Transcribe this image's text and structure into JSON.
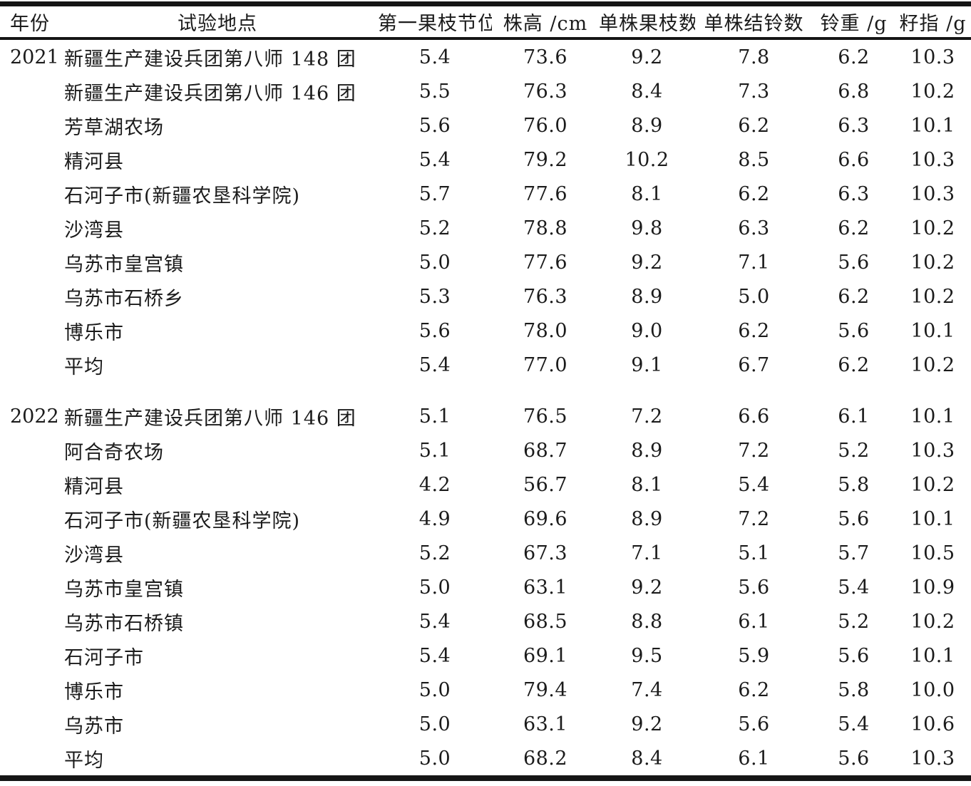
{
  "colors": {
    "background": "#ffffff",
    "text": "#1b1b1b",
    "rule": "#151515"
  },
  "table": {
    "columns": [
      "年份",
      "试验地点",
      "第一果枝节位",
      "株高 /cm",
      "单株果枝数",
      "单株结铃数",
      "铃重 /g",
      "籽指 /g"
    ],
    "sections": [
      {
        "year": "2021",
        "rows": [
          {
            "location": "新疆生产建设兵团第八师 148 团",
            "values": [
              "5.4",
              "73.6",
              "9.2",
              "7.8",
              "6.2",
              "10.3"
            ]
          },
          {
            "location": "新疆生产建设兵团第八师 146 团",
            "values": [
              "5.5",
              "76.3",
              "8.4",
              "7.3",
              "6.8",
              "10.2"
            ]
          },
          {
            "location": "芳草湖农场",
            "values": [
              "5.6",
              "76.0",
              "8.9",
              "6.2",
              "6.3",
              "10.1"
            ]
          },
          {
            "location": "精河县",
            "values": [
              "5.4",
              "79.2",
              "10.2",
              "8.5",
              "6.6",
              "10.3"
            ]
          },
          {
            "location": "石河子市(新疆农垦科学院)",
            "values": [
              "5.7",
              "77.6",
              "8.1",
              "6.2",
              "6.3",
              "10.3"
            ]
          },
          {
            "location": "沙湾县",
            "values": [
              "5.2",
              "78.8",
              "9.8",
              "6.3",
              "6.2",
              "10.2"
            ]
          },
          {
            "location": "乌苏市皇宫镇",
            "values": [
              "5.0",
              "77.6",
              "9.2",
              "7.1",
              "5.6",
              "10.2"
            ]
          },
          {
            "location": "乌苏市石桥乡",
            "values": [
              "5.3",
              "76.3",
              "8.9",
              "5.0",
              "6.2",
              "10.2"
            ]
          },
          {
            "location": "博乐市",
            "values": [
              "5.6",
              "78.0",
              "9.0",
              "6.2",
              "5.6",
              "10.1"
            ]
          },
          {
            "location": "平均",
            "values": [
              "5.4",
              "77.0",
              "9.1",
              "6.7",
              "6.2",
              "10.2"
            ]
          }
        ]
      },
      {
        "year": "2022",
        "rows": [
          {
            "location": "新疆生产建设兵团第八师 146 团",
            "values": [
              "5.1",
              "76.5",
              "7.2",
              "6.6",
              "6.1",
              "10.1"
            ]
          },
          {
            "location": "阿合奇农场",
            "values": [
              "5.1",
              "68.7",
              "8.9",
              "7.2",
              "5.2",
              "10.3"
            ]
          },
          {
            "location": "精河县",
            "values": [
              "4.2",
              "56.7",
              "8.1",
              "5.4",
              "5.8",
              "10.2"
            ]
          },
          {
            "location": "石河子市(新疆农垦科学院)",
            "values": [
              "4.9",
              "69.6",
              "8.9",
              "7.2",
              "5.6",
              "10.1"
            ]
          },
          {
            "location": "沙湾县",
            "values": [
              "5.2",
              "67.3",
              "7.1",
              "5.1",
              "5.7",
              "10.5"
            ]
          },
          {
            "location": "乌苏市皇宫镇",
            "values": [
              "5.0",
              "63.1",
              "9.2",
              "5.6",
              "5.4",
              "10.9"
            ]
          },
          {
            "location": "乌苏市石桥镇",
            "values": [
              "5.4",
              "68.5",
              "8.8",
              "6.1",
              "5.2",
              "10.2"
            ]
          },
          {
            "location": "石河子市",
            "values": [
              "5.4",
              "69.1",
              "9.5",
              "5.9",
              "5.6",
              "10.1"
            ]
          },
          {
            "location": "博乐市",
            "values": [
              "5.0",
              "79.4",
              "7.4",
              "6.2",
              "5.8",
              "10.0"
            ]
          },
          {
            "location": "乌苏市",
            "values": [
              "5.0",
              "63.1",
              "9.2",
              "5.6",
              "5.4",
              "10.6"
            ]
          },
          {
            "location": "平均",
            "values": [
              "5.0",
              "68.2",
              "8.4",
              "6.1",
              "5.6",
              "10.3"
            ]
          }
        ]
      }
    ]
  }
}
